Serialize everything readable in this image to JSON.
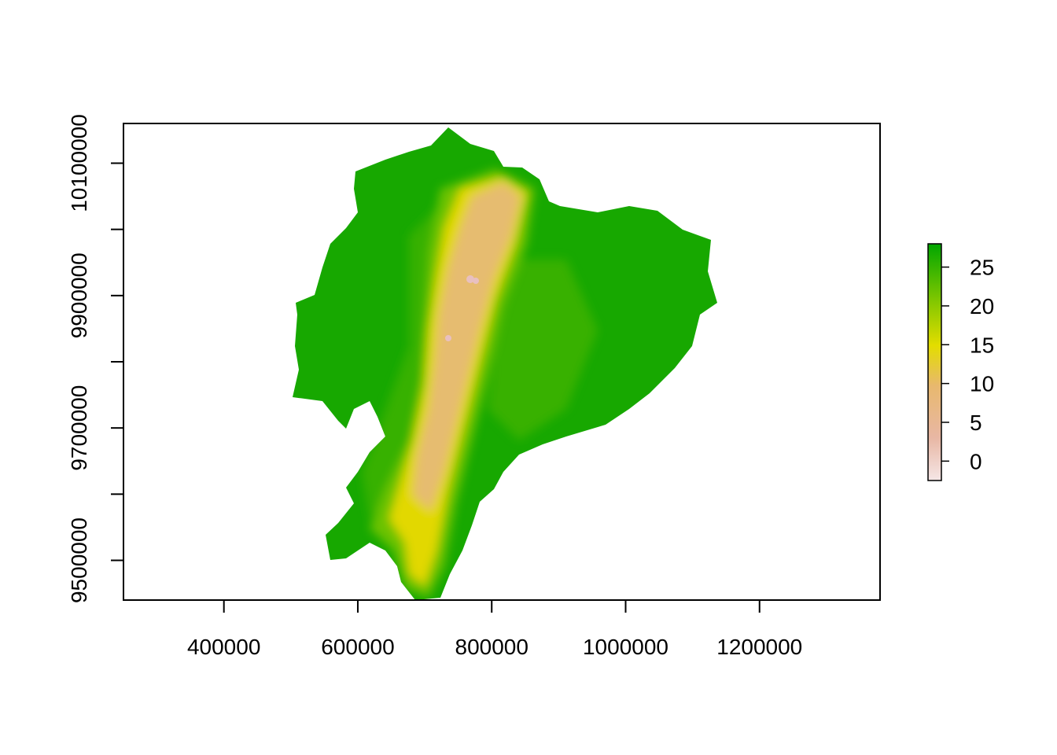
{
  "map": {
    "x_axis": {
      "range": [
        250000,
        1380000
      ],
      "ticks": [
        400000,
        600000,
        800000,
        1000000,
        1200000
      ],
      "tick_labels": [
        "400000",
        "600000",
        "800000",
        "1000000",
        "1200000"
      ]
    },
    "y_axis": {
      "range": [
        9440000,
        10160000
      ],
      "ticks": [
        9500000,
        9600000,
        9700000,
        9800000,
        9900000,
        10000000,
        10100000
      ],
      "labeled_ticks": [
        9500000,
        9700000,
        9900000,
        10100000
      ],
      "tick_labels": [
        "9500000",
        "9700000",
        "9900000",
        "10100000"
      ]
    },
    "legend": {
      "placement": "right",
      "range": [
        -2.5,
        28
      ],
      "ticks": [
        0,
        5,
        10,
        15,
        20,
        25
      ],
      "tick_labels": [
        "0",
        "5",
        "10",
        "15",
        "20",
        "25"
      ],
      "colors": [
        "#f5e6e6",
        "#e8b7a4",
        "#e8b86e",
        "#e3dd00",
        "#86c800",
        "#00a600"
      ]
    },
    "colors": {
      "lowland": "#17a800",
      "midland": "#6cc200",
      "foothill": "#e2d800",
      "highland": "#e6bc70",
      "peak": "#e8c0c0"
    },
    "grid": false
  }
}
